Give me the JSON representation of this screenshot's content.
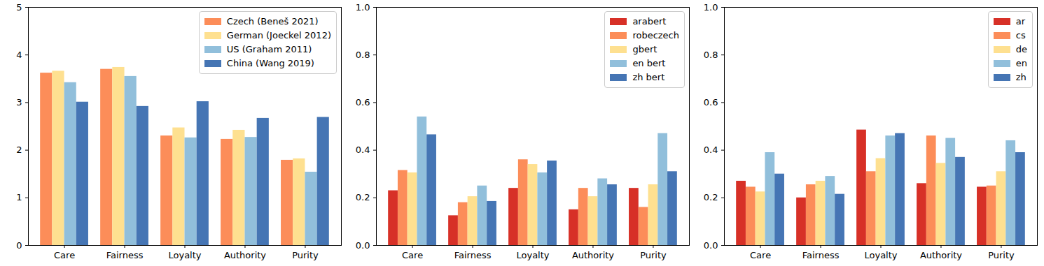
{
  "chart_data": [
    {
      "type": "bar",
      "categories": [
        "Care",
        "Fairness",
        "Loyalty",
        "Authority",
        "Purity"
      ],
      "series": [
        {
          "name": "Czech (Beneš 2021)",
          "color": "#fc8d59",
          "values": [
            3.62,
            3.7,
            2.3,
            2.23,
            1.79
          ]
        },
        {
          "name": "German (Joeckel 2012)",
          "color": "#fee090",
          "values": [
            3.66,
            3.74,
            2.47,
            2.42,
            1.82
          ]
        },
        {
          "name": "US (Graham 2011)",
          "color": "#91bfdb",
          "values": [
            3.42,
            3.55,
            2.26,
            2.27,
            1.54
          ]
        },
        {
          "name": "China (Wang 2019)",
          "color": "#4575b4",
          "values": [
            3.01,
            2.92,
            3.02,
            2.67,
            2.69
          ]
        }
      ],
      "ylim": [
        0,
        5
      ],
      "yticks": [
        0,
        1,
        2,
        3,
        4,
        5
      ],
      "legend": "upper right"
    },
    {
      "type": "bar",
      "categories": [
        "Care",
        "Fairness",
        "Loyalty",
        "Authority",
        "Purity"
      ],
      "series": [
        {
          "name": "arabert",
          "color": "#d73027",
          "values": [
            0.23,
            0.125,
            0.24,
            0.15,
            0.24
          ]
        },
        {
          "name": "robeczech",
          "color": "#fc8d59",
          "values": [
            0.315,
            0.18,
            0.36,
            0.24,
            0.16
          ]
        },
        {
          "name": "gbert",
          "color": "#fee090",
          "values": [
            0.305,
            0.205,
            0.34,
            0.205,
            0.255
          ]
        },
        {
          "name": "en bert",
          "color": "#91bfdb",
          "values": [
            0.54,
            0.25,
            0.305,
            0.28,
            0.47
          ]
        },
        {
          "name": "zh bert",
          "color": "#4575b4",
          "values": [
            0.465,
            0.185,
            0.355,
            0.255,
            0.31
          ]
        }
      ],
      "ylim": [
        0,
        1
      ],
      "yticks": [
        {
          "value": 0,
          "label": "0.0"
        },
        {
          "value": 0.2,
          "label": "0.2"
        },
        {
          "value": 0.4,
          "label": "0.4"
        },
        {
          "value": 0.6,
          "label": "0.6"
        },
        {
          "value": 0.8,
          "label": "0.8"
        },
        {
          "value": 1,
          "label": "1.0"
        }
      ],
      "legend": "upper right"
    },
    {
      "type": "bar",
      "categories": [
        "Care",
        "Fairness",
        "Loyalty",
        "Authority",
        "Purity"
      ],
      "series": [
        {
          "name": "ar",
          "color": "#d73027",
          "values": [
            0.27,
            0.2,
            0.485,
            0.26,
            0.245
          ]
        },
        {
          "name": "cs",
          "color": "#fc8d59",
          "values": [
            0.245,
            0.255,
            0.31,
            0.46,
            0.25
          ]
        },
        {
          "name": "de",
          "color": "#fee090",
          "values": [
            0.225,
            0.27,
            0.365,
            0.345,
            0.31
          ]
        },
        {
          "name": "en",
          "color": "#91bfdb",
          "values": [
            0.39,
            0.29,
            0.46,
            0.45,
            0.44
          ]
        },
        {
          "name": "zh",
          "color": "#4575b4",
          "values": [
            0.3,
            0.215,
            0.47,
            0.37,
            0.39
          ]
        }
      ],
      "ylim": [
        0,
        1
      ],
      "yticks": [
        {
          "value": 0,
          "label": "0.0"
        },
        {
          "value": 0.2,
          "label": "0.2"
        },
        {
          "value": 0.4,
          "label": "0.4"
        },
        {
          "value": 0.6,
          "label": "0.6"
        },
        {
          "value": 0.8,
          "label": "0.8"
        },
        {
          "value": 1,
          "label": "1.0"
        }
      ],
      "legend": "upper right"
    }
  ]
}
